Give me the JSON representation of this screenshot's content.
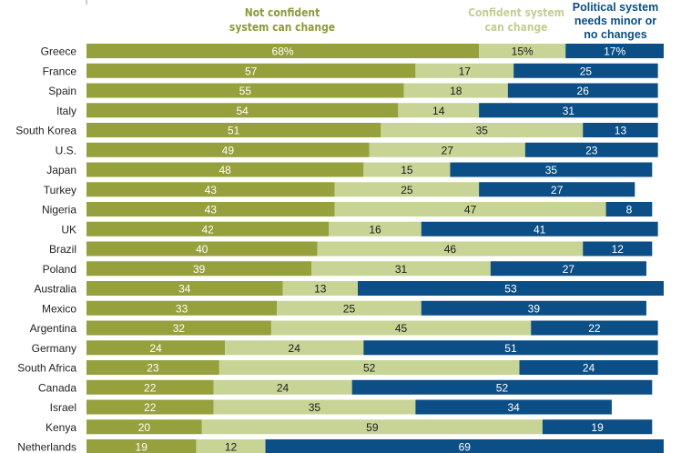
{
  "chart_data": {
    "type": "bar",
    "orientation": "horizontal",
    "stacked": true,
    "categories": [
      "Greece",
      "France",
      "Spain",
      "Italy",
      "South Korea",
      "U.S.",
      "Japan",
      "Turkey",
      "Nigeria",
      "UK",
      "Brazil",
      "Poland",
      "Australia",
      "Mexico",
      "Argentina",
      "Germany",
      "South Africa",
      "Canada",
      "Israel",
      "Kenya",
      "Netherlands"
    ],
    "series": [
      {
        "name": "Not confident system can change",
        "color": "#96a03c",
        "label_color": "#ffffff",
        "values": [
          68,
          57,
          55,
          54,
          51,
          49,
          48,
          43,
          43,
          42,
          40,
          39,
          34,
          33,
          32,
          24,
          23,
          22,
          22,
          20,
          19
        ]
      },
      {
        "name": "Confident system can change",
        "color": "#c8d496",
        "label_color": "#1a1a1a",
        "values": [
          15,
          17,
          18,
          14,
          35,
          27,
          15,
          25,
          47,
          16,
          46,
          31,
          13,
          25,
          45,
          24,
          52,
          24,
          35,
          59,
          12
        ]
      },
      {
        "name": "Political system needs minor or no changes",
        "color": "#0b4f86",
        "label_color": "#ffffff",
        "values": [
          17,
          25,
          26,
          31,
          13,
          23,
          35,
          27,
          8,
          41,
          12,
          27,
          53,
          39,
          22,
          51,
          24,
          52,
          34,
          19,
          69
        ]
      }
    ],
    "first_row_percent_sign": true,
    "xlim": [
      0,
      100
    ],
    "grid": false,
    "legend_placement": "top",
    "header_colors": [
      "#8c9a3a",
      "#c2ce92",
      "#0b4f86"
    ],
    "header_lines": [
      [
        "Not confident",
        "system can change"
      ],
      [
        "Confident system",
        "can change"
      ],
      [
        "Political system",
        "needs minor or",
        "no changes"
      ]
    ]
  }
}
